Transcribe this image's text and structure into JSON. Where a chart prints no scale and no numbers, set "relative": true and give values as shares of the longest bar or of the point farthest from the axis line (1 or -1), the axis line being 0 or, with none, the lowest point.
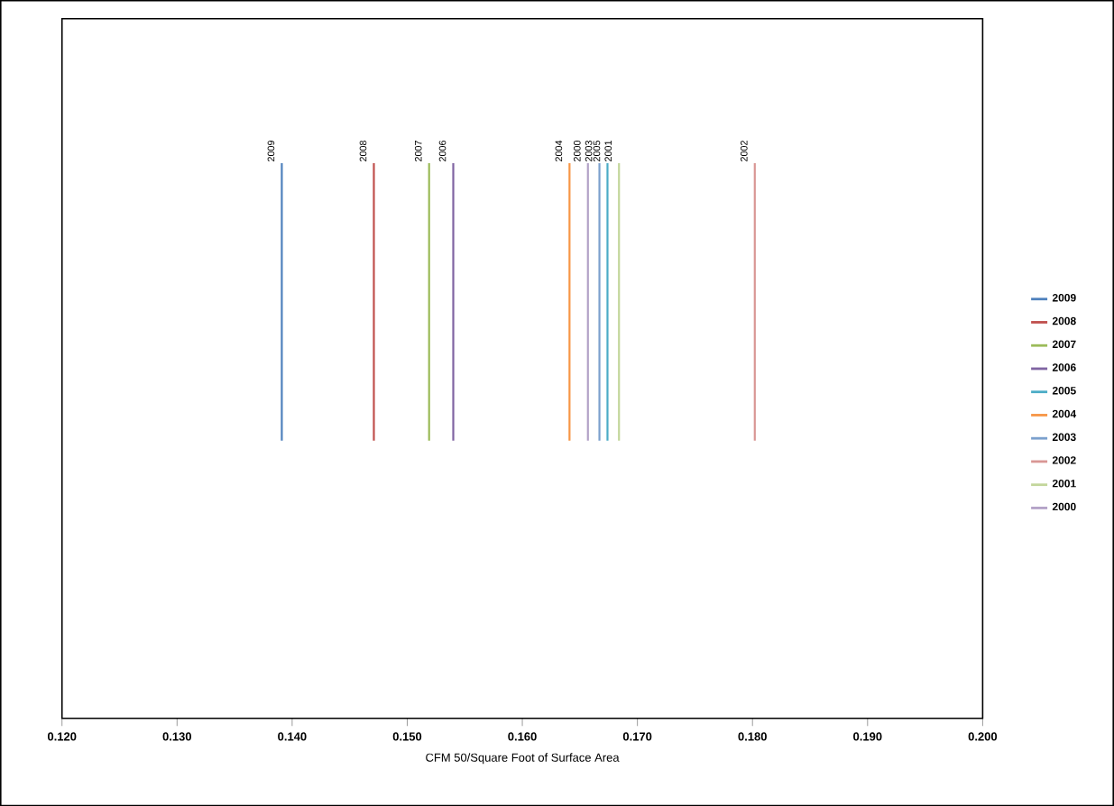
{
  "chart_data": {
    "type": "line",
    "xlabel": "CFM 50/Square Foot of Surface Area",
    "relative": true,
    "marker": "none",
    "legend": "right",
    "tick_labels": "x",
    "grid": false,
    "xlim": [
      0.12,
      0.2
    ],
    "xticks": [
      {
        "value": 0.12,
        "label": "0.120"
      },
      {
        "value": 0.13,
        "label": "0.130"
      },
      {
        "value": 0.14,
        "label": "0.140"
      },
      {
        "value": 0.15,
        "label": "0.150"
      },
      {
        "value": 0.16,
        "label": "0.160"
      },
      {
        "value": 0.17,
        "label": "0.170"
      },
      {
        "value": 0.18,
        "label": "0.180"
      },
      {
        "value": 0.19,
        "label": "0.190"
      },
      {
        "value": 0.2,
        "label": "0.200"
      }
    ],
    "series": [
      {
        "name": "2009",
        "color": "#4f81bd",
        "x": [
          0.1391,
          0.1391
        ],
        "values": [
          0.5,
          1
        ]
      },
      {
        "name": "2008",
        "color": "#c0504d",
        "x": [
          0.1471,
          0.1471
        ],
        "values": [
          0.5,
          1
        ]
      },
      {
        "name": "2007",
        "color": "#9bbb59",
        "x": [
          0.1519,
          0.1519
        ],
        "values": [
          0.5,
          1
        ]
      },
      {
        "name": "2006",
        "color": "#8064a2",
        "x": [
          0.154,
          0.154
        ],
        "values": [
          0.5,
          1
        ]
      },
      {
        "name": "2005",
        "color": "#4bacc6",
        "x": [
          0.1674,
          0.1674
        ],
        "values": [
          0.5,
          1
        ]
      },
      {
        "name": "2004",
        "color": "#f79646",
        "x": [
          0.1641,
          0.1641
        ],
        "values": [
          0.5,
          1
        ]
      },
      {
        "name": "2003",
        "color": "#7ba0cd",
        "x": [
          0.1667,
          0.1667
        ],
        "values": [
          0.5,
          1
        ]
      },
      {
        "name": "2002",
        "color": "#d99694",
        "x": [
          0.1802,
          0.1802
        ],
        "values": [
          0.5,
          1
        ]
      },
      {
        "name": "2001",
        "color": "#c3d69b",
        "x": [
          0.1684,
          0.1684
        ],
        "values": [
          0.5,
          1
        ]
      },
      {
        "name": "2000",
        "color": "#b3a2c7",
        "x": [
          0.1657,
          0.1657
        ],
        "values": [
          0.5,
          1
        ]
      }
    ]
  }
}
